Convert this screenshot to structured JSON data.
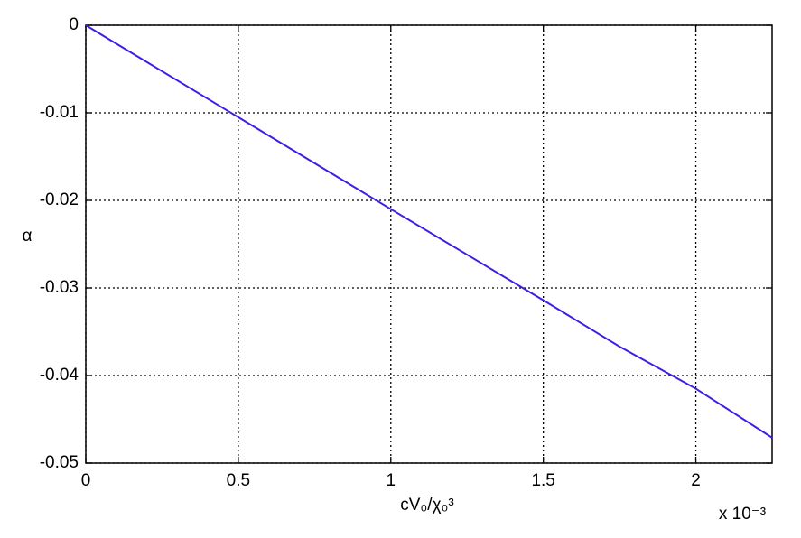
{
  "chart_data": {
    "type": "line",
    "xlabel": "cV₀/χ₀³",
    "ylabel": "α",
    "x_multiplier": "x 10⁻³",
    "x": [
      0,
      0.0005,
      0.001,
      0.0015,
      0.00175,
      0.002,
      0.00225
    ],
    "series": [
      {
        "name": "α",
        "color": "#3c1ee6",
        "values": [
          0,
          -0.0105,
          -0.021,
          -0.0314,
          -0.0367,
          -0.0415,
          -0.0471
        ]
      }
    ],
    "xlim": [
      0,
      0.00225
    ],
    "xticks": [
      {
        "value": 0,
        "label": "0"
      },
      {
        "value": 0.0005,
        "label": "0.5"
      },
      {
        "value": 0.001,
        "label": "1"
      },
      {
        "value": 0.0015,
        "label": "1.5"
      },
      {
        "value": 0.002,
        "label": "2"
      }
    ],
    "ylim": [
      -0.05,
      0
    ],
    "yticks": [
      0,
      -0.01,
      -0.02,
      -0.03,
      -0.04,
      -0.05
    ],
    "grid": true
  }
}
